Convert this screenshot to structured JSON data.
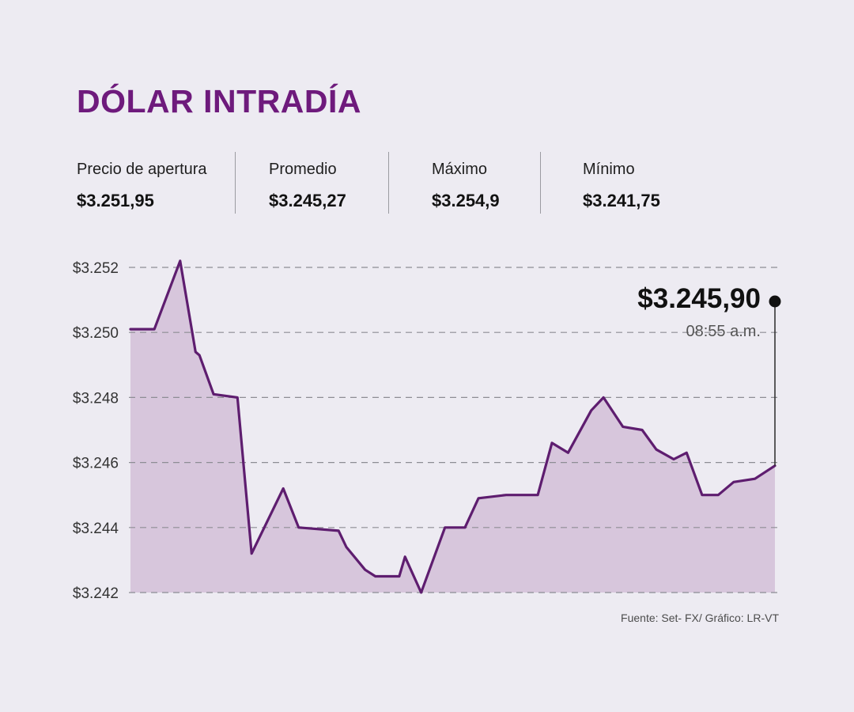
{
  "stats": {
    "items": [
      {
        "label": "Precio de apertura",
        "value": "$3.251,95"
      },
      {
        "label": "Promedio",
        "value": "$3.245,27"
      },
      {
        "label": "Máximo",
        "value": "$3.254,9"
      },
      {
        "label": "Mínimo",
        "value": "$3.241,75"
      }
    ]
  },
  "chart_data": {
    "type": "area",
    "title": "DÓLAR INTRADÍA",
    "ylabel": "",
    "xlabel": "",
    "ylim": [
      3242,
      3252
    ],
    "y_ticks": [
      3252,
      3250,
      3248,
      3246,
      3244,
      3242
    ],
    "y_tick_labels": [
      "$3.252",
      "$3.250",
      "$3.248",
      "$3.246",
      "$3.244",
      "$3.242"
    ],
    "grid": "dashed-horizontal",
    "points": [
      [
        0.0,
        3250.1
      ],
      [
        0.037,
        3250.1
      ],
      [
        0.077,
        3252.2
      ],
      [
        0.101,
        3249.4
      ],
      [
        0.107,
        3249.3
      ],
      [
        0.129,
        3248.1
      ],
      [
        0.166,
        3248.0
      ],
      [
        0.188,
        3243.2
      ],
      [
        0.237,
        3245.2
      ],
      [
        0.261,
        3244.0
      ],
      [
        0.323,
        3243.9
      ],
      [
        0.335,
        3243.4
      ],
      [
        0.364,
        3242.7
      ],
      [
        0.38,
        3242.5
      ],
      [
        0.417,
        3242.5
      ],
      [
        0.426,
        3243.1
      ],
      [
        0.451,
        3242.0
      ],
      [
        0.488,
        3244.0
      ],
      [
        0.519,
        3244.0
      ],
      [
        0.54,
        3244.9
      ],
      [
        0.583,
        3245.0
      ],
      [
        0.632,
        3245.0
      ],
      [
        0.654,
        3246.6
      ],
      [
        0.679,
        3246.3
      ],
      [
        0.715,
        3247.6
      ],
      [
        0.734,
        3248.0
      ],
      [
        0.764,
        3247.1
      ],
      [
        0.794,
        3247.0
      ],
      [
        0.816,
        3246.4
      ],
      [
        0.843,
        3246.1
      ],
      [
        0.863,
        3246.3
      ],
      [
        0.887,
        3245.0
      ],
      [
        0.912,
        3245.0
      ],
      [
        0.936,
        3245.4
      ],
      [
        0.969,
        3245.5
      ],
      [
        1.0,
        3245.9
      ]
    ],
    "last_point": {
      "label": "$3.245,90",
      "time": "08:55 a.m.",
      "value": 3245.9
    }
  },
  "footer": {
    "source": "Fuente: Set- FX/ Gráfico: LR-VT"
  },
  "colors": {
    "background": "#edebf2",
    "title": "#6e1a7c",
    "line": "#5e1d6f",
    "fill": "#d7c6dc",
    "grid": "#8d8d94",
    "axis_text": "#333333",
    "annotation_dot": "#111111",
    "connector": "#2b2b2b"
  }
}
